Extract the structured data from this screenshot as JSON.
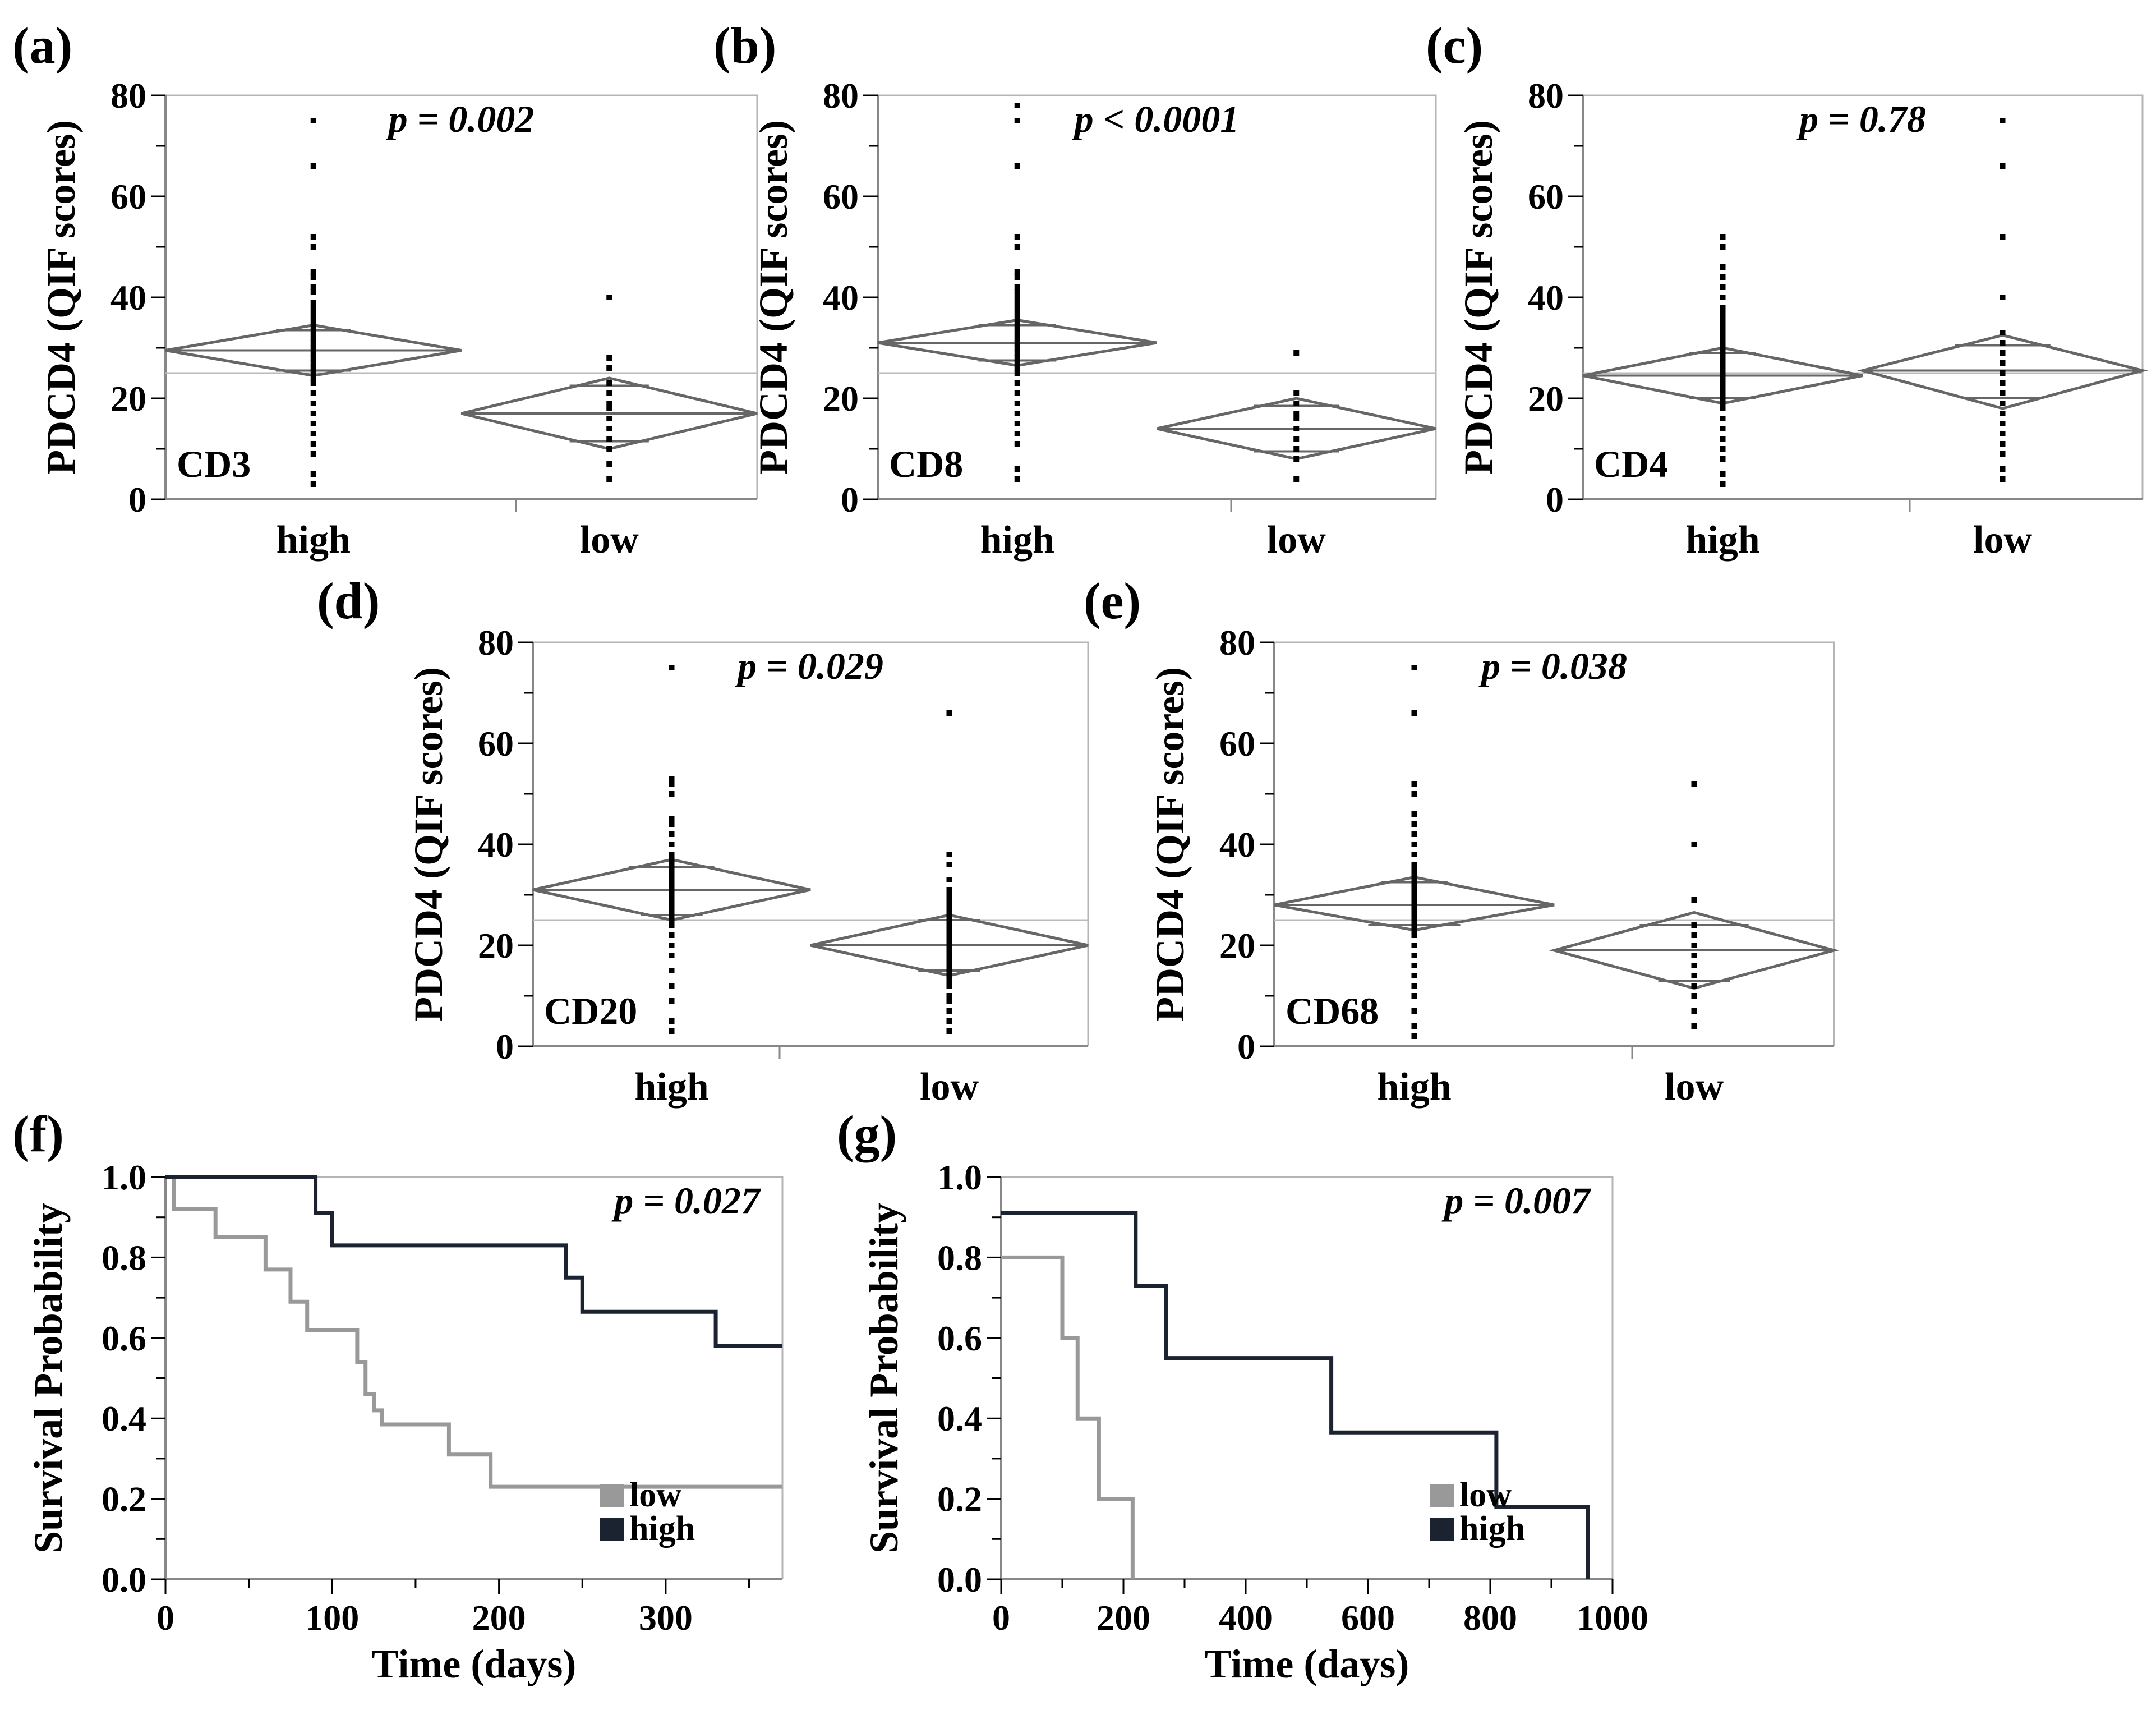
{
  "colors": {
    "diamond": "#666666",
    "grand_mean": "#bbbbbb",
    "point": "#000000",
    "frame": "#999999",
    "low_curve": "#999999",
    "high_curve": "#1c2330"
  },
  "chart_data": [
    {
      "id": "a",
      "panel_label": "(a)",
      "type": "scatter",
      "title": "p = 0.002",
      "marker": "CD3",
      "ylabel": "PDCD4 (QIF scores)",
      "xlabel": "",
      "ylim": [
        0,
        80
      ],
      "yticks": [
        "0",
        "20",
        "40",
        "60",
        "80"
      ],
      "categories": [
        "high",
        "low"
      ],
      "grand_mean": 25,
      "groups": [
        {
          "name": "high",
          "mean": 29.5,
          "ci": [
            24.5,
            34.5
          ],
          "quantiles": [
            25.5,
            33.5
          ],
          "points": [
            3,
            5,
            9,
            11,
            13,
            15,
            17,
            19,
            21,
            23,
            24,
            25,
            26,
            27,
            28,
            29,
            30,
            31,
            32,
            33,
            34,
            35,
            36,
            37,
            38,
            39,
            41,
            42,
            44,
            45,
            50,
            52,
            66,
            75
          ]
        },
        {
          "name": "low",
          "mean": 17,
          "ci": [
            10,
            24
          ],
          "quantiles": [
            11.5,
            22.5
          ],
          "points": [
            4,
            7,
            10,
            12,
            14,
            16,
            18,
            19,
            21,
            23,
            26,
            28,
            40
          ]
        }
      ]
    },
    {
      "id": "b",
      "panel_label": "(b)",
      "type": "scatter",
      "title": "p < 0.0001",
      "marker": "CD8",
      "ylabel": "PDCD4 (QIF scores)",
      "xlabel": "",
      "ylim": [
        0,
        80
      ],
      "yticks": [
        "0",
        "20",
        "40",
        "60",
        "80"
      ],
      "categories": [
        "high",
        "low"
      ],
      "grand_mean": 25,
      "groups": [
        {
          "name": "high",
          "mean": 31,
          "ci": [
            26.5,
            35.5
          ],
          "quantiles": [
            27.5,
            34.5
          ],
          "points": [
            4,
            6,
            11,
            13,
            15,
            17,
            19,
            21,
            23,
            25,
            26,
            27,
            28,
            29,
            30,
            31,
            32,
            33,
            34,
            35,
            36,
            37,
            38,
            39,
            40,
            41,
            42,
            44,
            45,
            50,
            52,
            66,
            75,
            78
          ]
        },
        {
          "name": "low",
          "mean": 14,
          "ci": [
            8,
            20
          ],
          "quantiles": [
            9.5,
            18.5
          ],
          "points": [
            4,
            8,
            10,
            12,
            14,
            16,
            17,
            19,
            21,
            29
          ]
        }
      ]
    },
    {
      "id": "c",
      "panel_label": "(c)",
      "type": "scatter",
      "title": "p = 0.78",
      "marker": "CD4",
      "ylabel": "PDCD4 (QIF scores)",
      "xlabel": "",
      "ylim": [
        0,
        80
      ],
      "yticks": [
        "0",
        "20",
        "40",
        "60",
        "80"
      ],
      "categories": [
        "high",
        "low"
      ],
      "grand_mean": 25,
      "groups": [
        {
          "name": "high",
          "mean": 24.5,
          "ci": [
            19,
            30
          ],
          "quantiles": [
            20,
            29
          ],
          "points": [
            3,
            5,
            8,
            10,
            12,
            14,
            16,
            18,
            19,
            20,
            21,
            22,
            23,
            24,
            25,
            26,
            27,
            28,
            29,
            30,
            31,
            32,
            33,
            34,
            35,
            36,
            37,
            38,
            40,
            42,
            44,
            46,
            50,
            52
          ]
        },
        {
          "name": "low",
          "mean": 25.5,
          "ci": [
            18,
            32.5
          ],
          "quantiles": [
            20,
            30.5
          ],
          "points": [
            4,
            6,
            9,
            11,
            13,
            15,
            17,
            19,
            21,
            23,
            25,
            27,
            29,
            31,
            33,
            40,
            52,
            66,
            75
          ]
        }
      ]
    },
    {
      "id": "d",
      "panel_label": "(d)",
      "type": "scatter",
      "title": "p = 0.029",
      "marker": "CD20",
      "ylabel": "PDCD4 (QIF scores)",
      "xlabel": "",
      "ylim": [
        0,
        80
      ],
      "yticks": [
        "0",
        "20",
        "40",
        "60",
        "80"
      ],
      "categories": [
        "high",
        "low"
      ],
      "grand_mean": 25,
      "groups": [
        {
          "name": "high",
          "mean": 31,
          "ci": [
            25,
            37
          ],
          "quantiles": [
            26,
            35.5
          ],
          "points": [
            3,
            5,
            9,
            12,
            15,
            18,
            20,
            22,
            24,
            25,
            26,
            27,
            28,
            29,
            30,
            31,
            32,
            33,
            34,
            35,
            36,
            37,
            38,
            40,
            42,
            44,
            45,
            50,
            52,
            53,
            75
          ]
        },
        {
          "name": "low",
          "mean": 20,
          "ci": [
            14,
            26
          ],
          "quantiles": [
            15,
            25
          ],
          "points": [
            3,
            5,
            7,
            9,
            10,
            12,
            13,
            14,
            15,
            16,
            17,
            18,
            19,
            20,
            21,
            22,
            23,
            24,
            25,
            26,
            27,
            28,
            29,
            30,
            31,
            33,
            36,
            38,
            66
          ]
        }
      ]
    },
    {
      "id": "e",
      "panel_label": "(e)",
      "type": "scatter",
      "title": "p = 0.038",
      "marker": "CD68",
      "ylabel": "PDCD4 (QIF scores)",
      "xlabel": "",
      "ylim": [
        0,
        80
      ],
      "yticks": [
        "0",
        "20",
        "40",
        "60",
        "80"
      ],
      "categories": [
        "high",
        "low"
      ],
      "grand_mean": 25,
      "groups": [
        {
          "name": "high",
          "mean": 28,
          "ci": [
            23,
            33.5
          ],
          "quantiles": [
            24,
            32.5
          ],
          "points": [
            2,
            4,
            7,
            10,
            12,
            14,
            16,
            18,
            20,
            22,
            23,
            24,
            25,
            26,
            27,
            28,
            29,
            30,
            31,
            32,
            33,
            34,
            35,
            36,
            38,
            40,
            42,
            44,
            46,
            50,
            52,
            66,
            75
          ]
        },
        {
          "name": "low",
          "mean": 19,
          "ci": [
            11.5,
            26.5
          ],
          "quantiles": [
            13,
            24
          ],
          "points": [
            4,
            7,
            10,
            12,
            14,
            16,
            18,
            20,
            22,
            24,
            29,
            40,
            52
          ]
        }
      ]
    },
    {
      "id": "f",
      "panel_label": "(f)",
      "type": "line",
      "title": "p = 0.027",
      "xlabel": "Time (days)",
      "ylabel": "Survival Probability",
      "xlim": [
        0,
        370
      ],
      "ylim": [
        0,
        1
      ],
      "xticks": [
        {
          "v": 0,
          "label": "0"
        },
        {
          "v": 100,
          "label": "100"
        },
        {
          "v": 200,
          "label": "200"
        },
        {
          "v": 300,
          "label": "300"
        }
      ],
      "yticks": [
        {
          "v": 0,
          "label": "0.0"
        },
        {
          "v": 0.2,
          "label": "0.2"
        },
        {
          "v": 0.4,
          "label": "0.4"
        },
        {
          "v": 0.6,
          "label": "0.6"
        },
        {
          "v": 0.8,
          "label": "0.8"
        },
        {
          "v": 1.0,
          "label": "1.0"
        }
      ],
      "legend": [
        "low",
        "high"
      ],
      "series": [
        {
          "name": "low",
          "color": "#999999",
          "x": [
            0,
            5,
            30,
            60,
            75,
            85,
            115,
            120,
            125,
            130,
            170,
            195,
            370
          ],
          "y": [
            1.0,
            0.92,
            0.85,
            0.77,
            0.69,
            0.62,
            0.54,
            0.46,
            0.42,
            0.385,
            0.31,
            0.23,
            0.23
          ]
        },
        {
          "name": "high",
          "color": "#1c2330",
          "x": [
            0,
            90,
            100,
            240,
            250,
            330,
            370
          ],
          "y": [
            1.0,
            0.91,
            0.83,
            0.75,
            0.665,
            0.58,
            0.58
          ]
        }
      ]
    },
    {
      "id": "g",
      "panel_label": "(g)",
      "type": "line",
      "title": "p = 0.007",
      "xlabel": "Time (days)",
      "ylabel": "Survival Probability",
      "xlim": [
        0,
        1000
      ],
      "ylim": [
        0,
        1
      ],
      "xticks": [
        {
          "v": 0,
          "label": "0"
        },
        {
          "v": 200,
          "label": "200"
        },
        {
          "v": 400,
          "label": "400"
        },
        {
          "v": 600,
          "label": "600"
        },
        {
          "v": 800,
          "label": "800"
        },
        {
          "v": 1000,
          "label": "1000"
        }
      ],
      "yticks": [
        {
          "v": 0,
          "label": "0.0"
        },
        {
          "v": 0.2,
          "label": "0.2"
        },
        {
          "v": 0.4,
          "label": "0.4"
        },
        {
          "v": 0.6,
          "label": "0.6"
        },
        {
          "v": 0.8,
          "label": "0.8"
        },
        {
          "v": 1.0,
          "label": "1.0"
        }
      ],
      "legend": [
        "low",
        "high"
      ],
      "series": [
        {
          "name": "low",
          "color": "#999999",
          "x": [
            0,
            100,
            125,
            160,
            215,
            215
          ],
          "y": [
            0.8,
            0.6,
            0.4,
            0.2,
            0.2,
            0.0
          ]
        },
        {
          "name": "high",
          "color": "#1c2330",
          "x": [
            0,
            220,
            270,
            540,
            810,
            960,
            960
          ],
          "y": [
            0.91,
            0.73,
            0.55,
            0.365,
            0.18,
            0.18,
            0.0
          ]
        }
      ]
    }
  ]
}
